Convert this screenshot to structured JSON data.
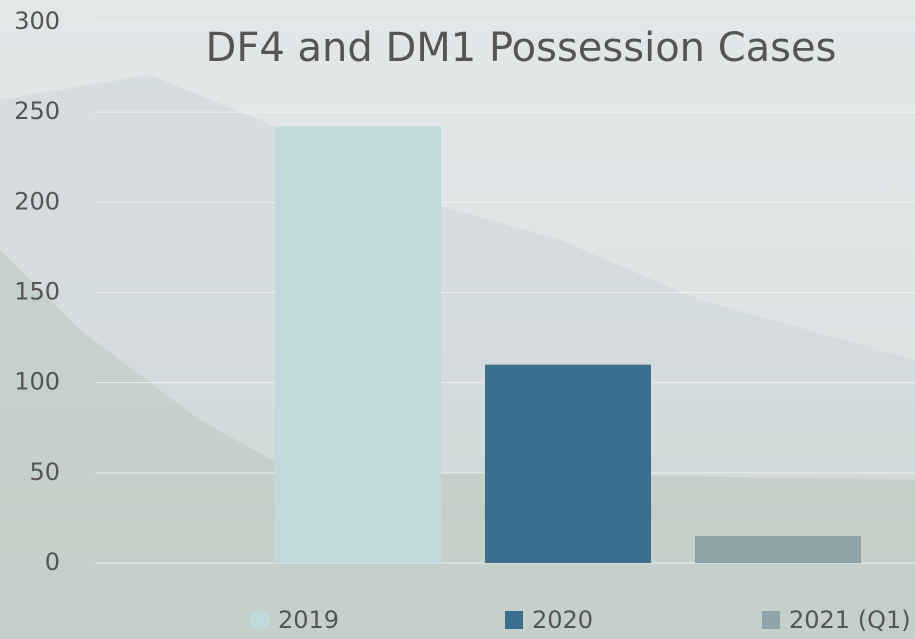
{
  "chart_data": {
    "type": "bar",
    "title": "DF4 and DM1 Possession Cases",
    "categories": [
      null
    ],
    "series": [
      {
        "name": "2019",
        "color": "#bfd9dd",
        "values": [
          242
        ]
      },
      {
        "name": "2020",
        "color": "#3c6f8f",
        "values": [
          110
        ]
      },
      {
        "name": "2021 (Q1)",
        "color": "#8fa3a8",
        "values": [
          15
        ]
      }
    ],
    "ylim": [
      0,
      300
    ],
    "yticks": [
      0,
      50,
      100,
      150,
      200,
      250,
      300
    ],
    "grid": true,
    "legend": "bottom"
  }
}
